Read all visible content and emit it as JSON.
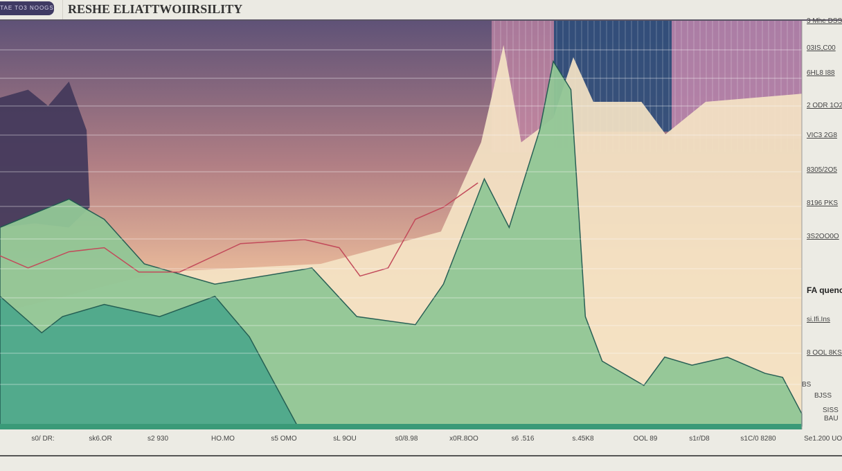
{
  "header": {
    "badge": "TAE  TO3 NOOGS",
    "title": "RESHE ELIATTWOIIRSILITY"
  },
  "chart_data": {
    "type": "area",
    "title": "RESHE ELIATTWOIIRSILITY",
    "xlabel": "",
    "ylabel": "",
    "x_tick_labels": [
      "s0/ DR:",
      "sk6.OR",
      "s2 930",
      "HO.MO",
      "s5 OMO",
      "sL 9OU",
      "s0/8.98",
      "x0R.8OO",
      "s6 .516",
      "s.45K8",
      "OOL 89",
      "s1r/D8",
      "s1C/0 8280",
      "Se1.200 UOI"
    ],
    "y_tick_labels": [
      "3 Mhe DSS",
      "03IS,C00",
      "6HL8 I88",
      "2 ODR 1O2",
      "VIC3 2G8",
      "8305/2O5",
      "8196 PKS",
      "3S2OO0O",
      "si.Ifi.Ins",
      "8 OOL 8KS"
    ],
    "annotations": [
      "FA quence",
      "BS",
      "BJSS",
      "SISS",
      "BAU"
    ],
    "grid": true,
    "xlim": [
      0,
      100
    ],
    "ylim": [
      0,
      100
    ],
    "colors": {
      "purple": "#4a3f63",
      "cream": "#f5e6c8",
      "salmon": "#d99a86",
      "green": "#8fc58f",
      "teal": "#4aa58a",
      "line": "#1f5a50",
      "red": "#c24a5a",
      "blue": "#2e4e7a",
      "pink": "#b985ad"
    },
    "series": [
      {
        "key": "purple",
        "color": "#443a5c",
        "x": [
          0,
          3.5,
          6,
          8.6,
          10.8,
          11.2,
          8.6,
          4.3,
          0
        ],
        "y": [
          81,
          83,
          79,
          85,
          73,
          54,
          49,
          50,
          49
        ]
      },
      {
        "key": "cream",
        "color": "#f4e3c4",
        "x": [
          0,
          20,
          40,
          55,
          60,
          62.8,
          65,
          69,
          71.5,
          74,
          80,
          83,
          88,
          100,
          100,
          0
        ],
        "y": [
          28,
          38,
          40,
          48,
          70,
          94,
          70,
          76,
          91,
          80,
          80,
          72,
          80,
          82,
          0,
          0
        ]
      },
      {
        "key": "green",
        "color": "#92c796",
        "x": [
          0,
          8.6,
          13,
          18,
          26.8,
          38.9,
          44.5,
          51.8,
          55.3,
          60.4,
          63.5,
          67.3,
          69,
          71.2,
          73,
          75.1,
          80.3,
          82.9,
          86.3,
          90.7,
          95.4,
          97.6,
          100,
          100,
          0
        ],
        "y": [
          49,
          56,
          51,
          40,
          35,
          39,
          27,
          25,
          35,
          61,
          49,
          73,
          90,
          83,
          27,
          16,
          10,
          17,
          15,
          17,
          13,
          12,
          3,
          0,
          0
        ]
      },
      {
        "key": "teal",
        "color": "#4fa98c",
        "x": [
          0,
          5.2,
          7.8,
          13,
          19.9,
          26.8,
          31.1,
          37.1,
          37.1,
          0
        ],
        "y": [
          32,
          23,
          27,
          30,
          27,
          32,
          22,
          0,
          0,
          0
        ]
      }
    ],
    "red_line": {
      "x": [
        0,
        3.5,
        8.6,
        13,
        17.3,
        22.4,
        30,
        38,
        42.3,
        44.9,
        48.4,
        51.8,
        55.3,
        59.6
      ],
      "y": [
        42,
        39,
        43,
        44,
        38,
        38,
        45,
        46,
        44,
        37,
        39,
        51,
        54,
        60
      ]
    }
  },
  "labels": {
    "annotation_main": "FA quence",
    "ann1": "BS",
    "ann2": "BJSS",
    "ann3": "SISS",
    "ann4": "BAU"
  }
}
